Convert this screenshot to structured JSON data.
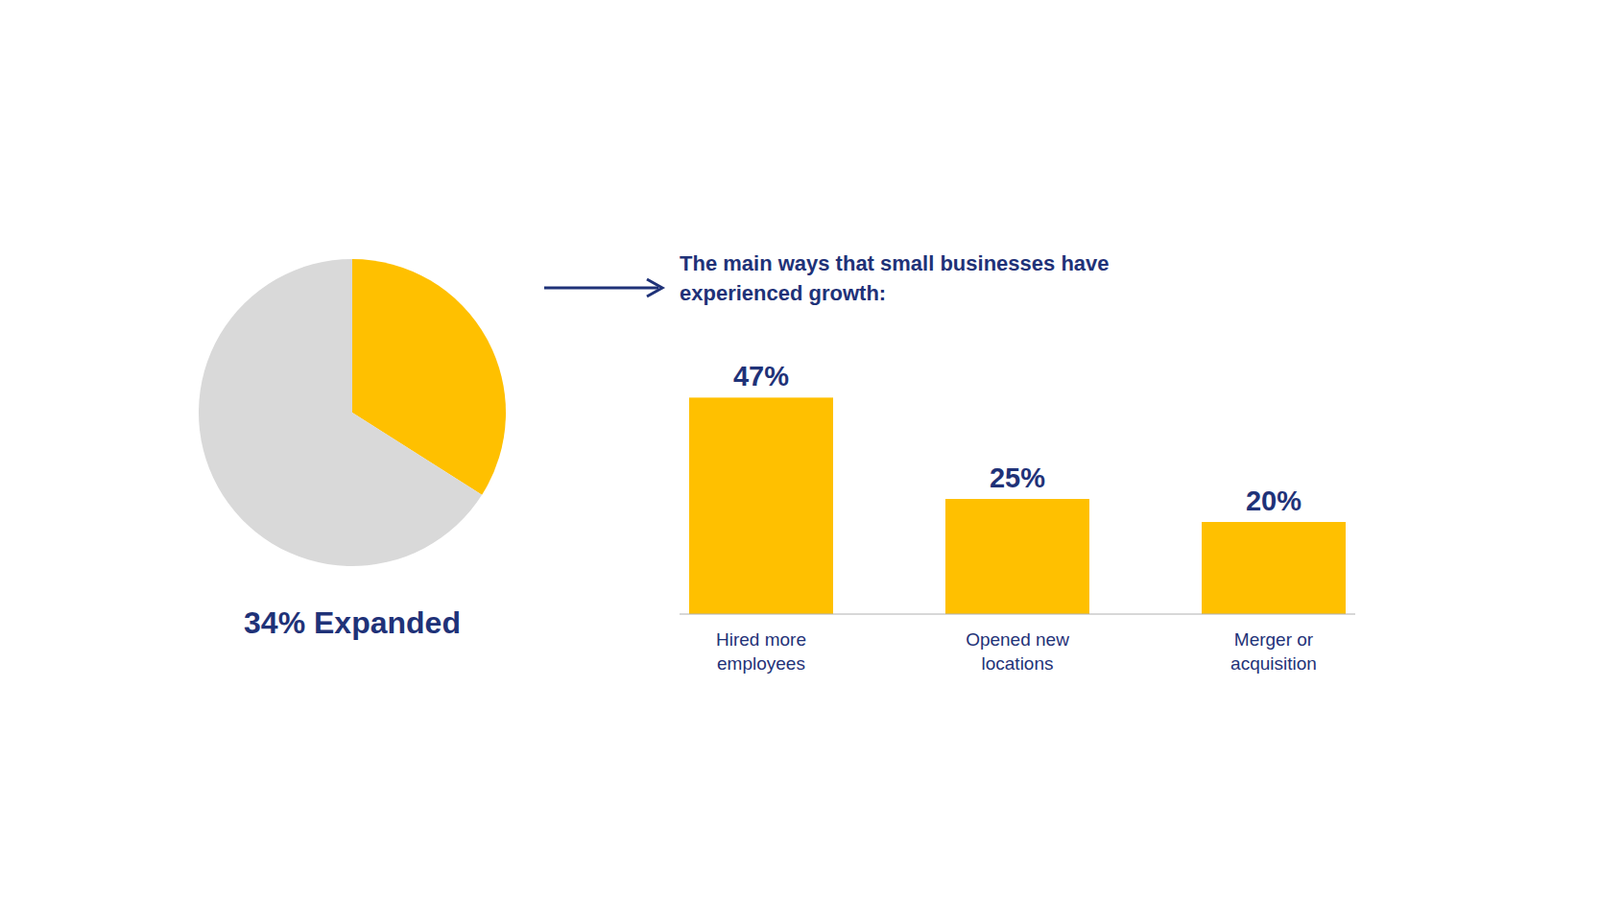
{
  "chart_data": [
    {
      "type": "pie",
      "values": [
        34,
        66
      ],
      "colors": [
        "#FFC000",
        "#D9D9D9"
      ],
      "annotation": "34% Expanded"
    },
    {
      "type": "bar",
      "title": "The main ways that small businesses have\nexperienced growth:",
      "categories": [
        "Hired more\nemployees",
        "Opened new\nlocations",
        "Merger or\nacquisition"
      ],
      "values": [
        47,
        25,
        20
      ],
      "value_labels": [
        "47%",
        "25%",
        "20%"
      ],
      "color": "#FFC000",
      "ylim": [
        0,
        50
      ],
      "data_labels": true,
      "tick_labels": "x",
      "grid": false
    }
  ]
}
